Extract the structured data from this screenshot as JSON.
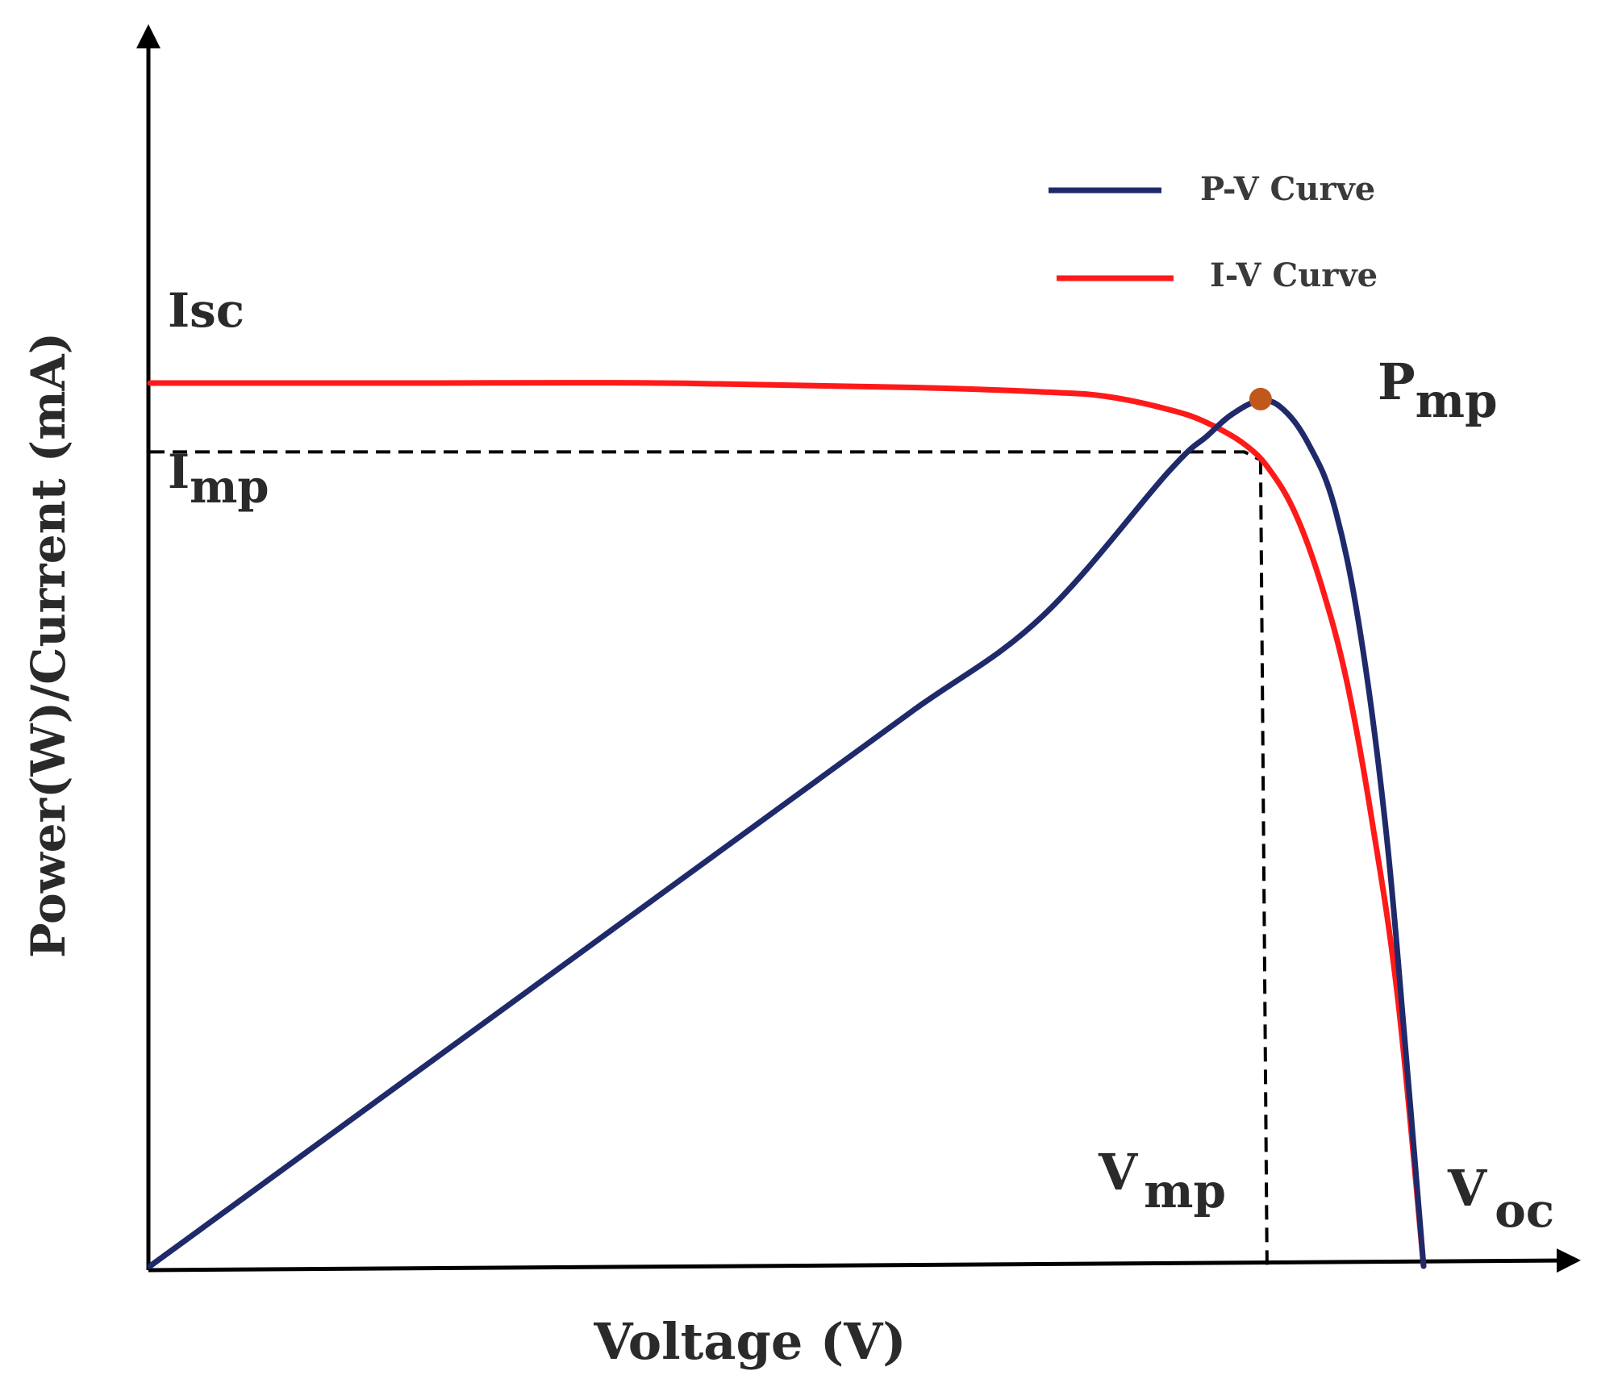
{
  "chart_data": {
    "type": "line",
    "xlabel": "Voltage (V)",
    "ylabel": "Power(W)/Current (mA)",
    "grid": false,
    "legend_placement": "top-right",
    "x_range": [
      0,
      1
    ],
    "y_range": [
      0,
      1
    ],
    "series": [
      {
        "name": "P-V Curve",
        "color": "#1f2a6b",
        "x": [
          0.0,
          0.1,
          0.2,
          0.3,
          0.4,
          0.5,
          0.6,
          0.7,
          0.8,
          0.83,
          0.85,
          0.872,
          0.89,
          0.91,
          0.93,
          0.95,
          0.97,
          0.985,
          1.0
        ],
        "y": [
          0.0,
          0.105,
          0.21,
          0.315,
          0.42,
          0.525,
          0.63,
          0.735,
          0.9,
          0.94,
          0.965,
          0.98,
          0.97,
          0.93,
          0.86,
          0.72,
          0.5,
          0.26,
          0.0
        ]
      },
      {
        "name": "I-V Curve",
        "color": "#ff1a1a",
        "x": [
          0.0,
          0.2,
          0.4,
          0.6,
          0.7,
          0.75,
          0.8,
          0.83,
          0.86,
          0.88,
          0.9,
          0.92,
          0.94,
          0.96,
          0.98,
          1.0
        ],
        "y": [
          1.0,
          1.0,
          1.0,
          0.995,
          0.99,
          0.985,
          0.97,
          0.955,
          0.93,
          0.9,
          0.85,
          0.77,
          0.66,
          0.5,
          0.3,
          0.0
        ]
      }
    ],
    "points": {
      "mpp": {
        "x": 0.872,
        "y": 0.98,
        "color": "#c0571b"
      }
    },
    "annotations": {
      "isc": "Isc",
      "imp_main": "I",
      "imp_sub": "mp",
      "pmp_main": "P",
      "pmp_sub": "mp",
      "vmp_main": "V",
      "vmp_sub": "mp",
      "voc_main": "V",
      "voc_sub": "oc"
    }
  }
}
